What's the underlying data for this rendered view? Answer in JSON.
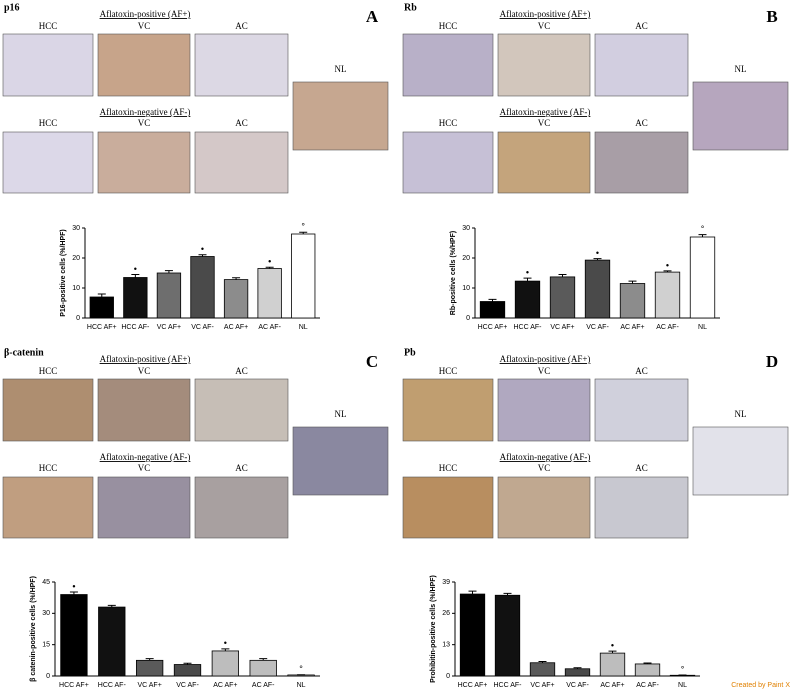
{
  "panels": [
    {
      "stain": "p16",
      "letter": "A",
      "af_pos": "Aflatoxin-positive (AF+)",
      "af_neg": "Aflatoxin-negative (AF-)",
      "image_labels": [
        "HCC",
        "VC",
        "AC",
        "HCC",
        "VC",
        "AC",
        "NL"
      ]
    },
    {
      "stain": "Rb",
      "letter": "B",
      "af_pos": "Aflatoxin-positive (AF+)",
      "af_neg": "Aflatoxin-negative (AF-)",
      "image_labels": [
        "HCC",
        "VC",
        "AC",
        "HCC",
        "VC",
        "AC",
        "NL"
      ]
    },
    {
      "stain": "β-catenin",
      "letter": "C",
      "af_pos": "Aflatoxin-positive (AF+)",
      "af_neg": "Aflatoxin-negative (AF-)",
      "image_labels": [
        "HCC",
        "VC",
        "AC",
        "HCC",
        "VC",
        "AC",
        "NL"
      ]
    },
    {
      "stain": "Pb",
      "letter": "D",
      "af_pos": "Aflatoxin-positive (AF+)",
      "af_neg": "Aflatoxin-negative (AF-)",
      "image_labels": [
        "HCC",
        "VC",
        "AC",
        "HCC",
        "VC",
        "AC",
        "NL"
      ]
    }
  ],
  "chart_data": [
    {
      "type": "bar",
      "y_label": "P16-positive cells (%/HPF)",
      "categories": [
        "HCC AF+",
        "HCC AF-",
        "VC AF+",
        "VC AF-",
        "AC AF+",
        "AC AF-",
        "NL"
      ],
      "values": [
        7,
        13.5,
        15,
        20.5,
        12.8,
        16.5,
        28
      ],
      "errors": [
        1,
        1,
        0.8,
        0.6,
        0.6,
        0.4,
        0.6
      ],
      "annotations": [
        null,
        "•",
        null,
        "•",
        null,
        "•",
        "°"
      ],
      "colors": [
        "#000000",
        "#111111",
        "#6e6e6e",
        "#4a4a4a",
        "#8c8c8c",
        "#d0d0d0",
        "#ffffff"
      ],
      "ylim": [
        0,
        30
      ],
      "yticks": [
        0,
        10,
        20,
        30
      ]
    },
    {
      "type": "bar",
      "y_label": "Rb-positive cells (%/HPF)",
      "categories": [
        "HCC AF+",
        "HCC AF-",
        "VC AF+",
        "VC AF-",
        "AC AF+",
        "AC AF-",
        "NL"
      ],
      "values": [
        5.5,
        12.3,
        13.7,
        19.3,
        11.5,
        15.3,
        27
      ],
      "errors": [
        0.7,
        1,
        0.8,
        0.5,
        0.8,
        0.4,
        0.8
      ],
      "annotations": [
        null,
        "•",
        null,
        "•",
        null,
        "•",
        "°"
      ],
      "colors": [
        "#000000",
        "#111111",
        "#5a5a5a",
        "#4a4a4a",
        "#8c8c8c",
        "#d0d0d0",
        "#ffffff"
      ],
      "ylim": [
        0,
        30
      ],
      "yticks": [
        0,
        10,
        20,
        30
      ]
    },
    {
      "type": "bar",
      "y_label": "β catenin-positive cells (%/HPF)",
      "categories": [
        "HCC AF+",
        "HCC AF-",
        "VC AF+",
        "VC AF-",
        "AC AF+",
        "AC AF-",
        "NL"
      ],
      "values": [
        39,
        33,
        7.5,
        5.5,
        12,
        7.5,
        0.5
      ],
      "errors": [
        1.2,
        0.8,
        0.8,
        0.6,
        1,
        0.8,
        0.1
      ],
      "annotations": [
        "•",
        null,
        null,
        null,
        "•",
        null,
        "°"
      ],
      "colors": [
        "#000000",
        "#111111",
        "#5a5a5a",
        "#4a4a4a",
        "#bdbdbd",
        "#bdbdbd",
        "#ffffff"
      ],
      "ylim": [
        0,
        45
      ],
      "yticks": [
        0,
        15,
        30,
        45
      ]
    },
    {
      "type": "bar",
      "y_label": "Prohibitin-positive cells (%/HPF)",
      "categories": [
        "HCC AF+",
        "HCC AF-",
        "VC AF+",
        "VC AF-",
        "AC AF+",
        "AC AF-",
        "NL"
      ],
      "values": [
        34,
        33.5,
        5.5,
        3,
        9.5,
        5,
        0.3
      ],
      "errors": [
        1.2,
        0.8,
        0.5,
        0.4,
        0.8,
        0.4,
        0.1
      ],
      "annotations": [
        null,
        null,
        null,
        null,
        "•",
        null,
        "°"
      ],
      "colors": [
        "#000000",
        "#111111",
        "#5a5a5a",
        "#4a4a4a",
        "#bdbdbd",
        "#bdbdbd",
        "#ffffff"
      ],
      "ylim": [
        0,
        39
      ],
      "yticks": [
        0,
        13,
        26,
        39
      ]
    }
  ],
  "watermark": "Created by Paint X"
}
